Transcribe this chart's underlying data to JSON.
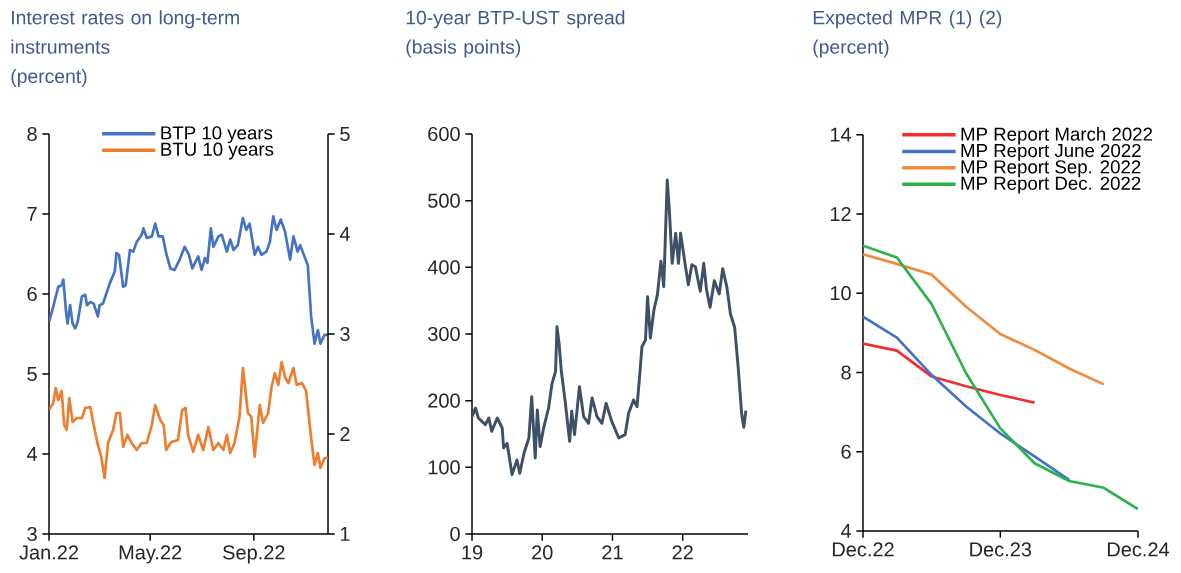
{
  "chart_data": [
    {
      "type": "line",
      "title": "Interest rates on long-term instruments",
      "subtitle": "(percent)",
      "legend": "top",
      "xlim": [
        "2022-01-01",
        "2022-11-28"
      ],
      "xticks": [
        {
          "value": "2022-01-01",
          "label": "Jan.22"
        },
        {
          "value": "2022-05-01",
          "label": "May.22"
        },
        {
          "value": "2022-09-01",
          "label": "Sep.22"
        }
      ],
      "ylim": [
        3,
        8
      ],
      "yticks": [
        3,
        4,
        5,
        6,
        7,
        8
      ],
      "y2lim": [
        1,
        5
      ],
      "y2ticks": [
        1,
        2,
        3,
        4,
        5
      ],
      "series": [
        {
          "name": "BTP 10 years",
          "color": "#4472c4",
          "x": [
            "2022-01-01",
            "2022-01-06",
            "2022-01-12",
            "2022-01-16",
            "2022-01-18",
            "2022-01-21",
            "2022-01-23",
            "2022-01-26",
            "2022-01-29",
            "2022-02-01",
            "2022-02-04",
            "2022-02-09",
            "2022-02-13",
            "2022-02-15",
            "2022-02-19",
            "2022-02-23",
            "2022-02-28",
            "2022-03-02",
            "2022-03-06",
            "2022-03-14",
            "2022-03-20",
            "2022-03-22",
            "2022-03-25",
            "2022-03-30",
            "2022-04-02",
            "2022-04-07",
            "2022-04-11",
            "2022-04-15",
            "2022-04-21",
            "2022-04-23",
            "2022-04-27",
            "2022-05-03",
            "2022-05-07",
            "2022-05-11",
            "2022-05-16",
            "2022-05-20",
            "2022-05-25",
            "2022-05-30",
            "2022-06-05",
            "2022-06-11",
            "2022-06-16",
            "2022-06-20",
            "2022-06-27",
            "2022-07-01",
            "2022-07-05",
            "2022-07-08",
            "2022-07-12",
            "2022-07-15",
            "2022-07-21",
            "2022-07-25",
            "2022-07-31",
            "2022-08-04",
            "2022-08-08",
            "2022-08-13",
            "2022-08-19",
            "2022-08-23",
            "2022-08-27",
            "2022-09-02",
            "2022-09-06",
            "2022-09-10",
            "2022-09-16",
            "2022-09-20",
            "2022-09-24",
            "2022-09-28",
            "2022-10-03",
            "2022-10-08",
            "2022-10-14",
            "2022-10-18",
            "2022-10-23",
            "2022-10-26",
            "2022-10-31",
            "2022-11-04",
            "2022-11-08",
            "2022-11-12",
            "2022-11-16",
            "2022-11-19",
            "2022-11-24",
            "2022-11-28"
          ],
          "values": [
            5.65,
            5.84,
            6.09,
            6.11,
            6.18,
            5.8,
            5.63,
            5.86,
            5.63,
            5.57,
            5.65,
            5.97,
            5.99,
            5.86,
            5.9,
            5.88,
            5.72,
            5.86,
            5.88,
            6.13,
            6.28,
            6.51,
            6.49,
            6.09,
            6.11,
            6.55,
            6.53,
            6.65,
            6.74,
            6.82,
            6.7,
            6.72,
            6.88,
            6.72,
            6.72,
            6.51,
            6.32,
            6.3,
            6.43,
            6.59,
            6.49,
            6.32,
            6.47,
            6.3,
            6.45,
            6.39,
            6.82,
            6.59,
            6.72,
            6.74,
            6.53,
            6.68,
            6.55,
            6.61,
            6.95,
            6.8,
            6.88,
            6.49,
            6.59,
            6.49,
            6.53,
            6.65,
            6.97,
            6.8,
            6.93,
            6.78,
            6.43,
            6.72,
            6.53,
            6.61,
            6.47,
            6.36,
            5.72,
            5.38,
            5.55,
            5.38,
            5.49,
            5.49
          ]
        },
        {
          "name": "BTU 10 years",
          "color": "#ed7d31",
          "axis": "y2",
          "x": [
            "2022-01-01",
            "2022-01-06",
            "2022-01-09",
            "2022-01-12",
            "2022-01-16",
            "2022-01-19",
            "2022-01-22",
            "2022-01-25",
            "2022-01-29",
            "2022-02-03",
            "2022-02-09",
            "2022-02-13",
            "2022-02-19",
            "2022-02-23",
            "2022-02-28",
            "2022-03-04",
            "2022-03-08",
            "2022-03-12",
            "2022-03-18",
            "2022-03-22",
            "2022-03-26",
            "2022-03-30",
            "2022-04-04",
            "2022-04-09",
            "2022-04-15",
            "2022-04-21",
            "2022-04-27",
            "2022-05-03",
            "2022-05-07",
            "2022-05-13",
            "2022-05-17",
            "2022-05-20",
            "2022-05-26",
            "2022-06-03",
            "2022-06-08",
            "2022-06-12",
            "2022-06-15",
            "2022-06-21",
            "2022-06-27",
            "2022-07-03",
            "2022-07-09",
            "2022-07-15",
            "2022-07-21",
            "2022-07-27",
            "2022-07-31",
            "2022-08-04",
            "2022-08-09",
            "2022-08-15",
            "2022-08-19",
            "2022-08-25",
            "2022-08-29",
            "2022-09-02",
            "2022-09-08",
            "2022-09-12",
            "2022-09-18",
            "2022-09-22",
            "2022-09-26",
            "2022-09-30",
            "2022-10-04",
            "2022-10-08",
            "2022-10-12",
            "2022-10-18",
            "2022-10-22",
            "2022-10-28",
            "2022-11-02",
            "2022-11-08",
            "2022-11-12",
            "2022-11-16",
            "2022-11-19",
            "2022-11-24",
            "2022-11-28"
          ],
          "values": [
            2.24,
            2.31,
            2.46,
            2.34,
            2.43,
            2.09,
            2.04,
            2.36,
            2.12,
            2.16,
            2.16,
            2.26,
            2.27,
            2.09,
            1.89,
            1.77,
            1.56,
            1.91,
            2.04,
            2.21,
            2.21,
            1.87,
            1.99,
            1.91,
            1.84,
            1.91,
            1.91,
            2.09,
            2.29,
            2.14,
            2.09,
            1.84,
            1.92,
            1.94,
            2.24,
            2.26,
            1.99,
            1.82,
            1.99,
            1.84,
            2.07,
            1.84,
            1.91,
            1.84,
            1.99,
            1.81,
            1.91,
            2.17,
            2.66,
            2.21,
            2.17,
            1.77,
            2.29,
            2.11,
            2.21,
            2.47,
            2.61,
            2.49,
            2.72,
            2.57,
            2.51,
            2.66,
            2.49,
            2.51,
            2.43,
            1.96,
            1.69,
            1.81,
            1.66,
            1.76,
            1.76
          ]
        }
      ]
    },
    {
      "type": "line",
      "title": "10-year BTP-UST spread",
      "subtitle": "(basis points)",
      "xlim": [
        19,
        22.93
      ],
      "xticks": [
        19,
        20,
        21,
        22
      ],
      "ylim": [
        0,
        600
      ],
      "yticks": [
        0,
        100,
        200,
        300,
        400,
        500,
        600
      ],
      "series": [
        {
          "color": "#3e5066",
          "x": [
            19.0,
            19.05,
            19.09,
            19.19,
            19.24,
            19.28,
            19.36,
            19.43,
            19.45,
            19.5,
            19.57,
            19.64,
            19.68,
            19.74,
            19.81,
            19.85,
            19.9,
            19.93,
            19.97,
            20.02,
            20.09,
            20.14,
            20.19,
            20.21,
            20.24,
            20.27,
            20.33,
            20.39,
            20.42,
            20.46,
            20.53,
            20.59,
            20.66,
            20.71,
            20.78,
            20.85,
            20.91,
            20.99,
            21.09,
            21.18,
            21.23,
            21.3,
            21.35,
            21.39,
            21.42,
            21.47,
            21.5,
            21.54,
            21.59,
            21.64,
            21.69,
            21.73,
            21.78,
            21.81,
            21.85,
            21.9,
            21.94,
            21.97,
            22.04,
            22.08,
            22.13,
            22.18,
            22.25,
            22.3,
            22.34,
            22.39,
            22.45,
            22.52,
            22.57,
            22.63,
            22.68,
            22.74,
            22.79,
            22.84,
            22.87,
            22.9
          ],
          "values": [
            176,
            189,
            174,
            164,
            174,
            154,
            174,
            159,
            129,
            136,
            89,
            111,
            91,
            121,
            144,
            206,
            114,
            186,
            131,
            159,
            189,
            226,
            244,
            311,
            286,
            246,
            196,
            139,
            184,
            149,
            221,
            176,
            166,
            204,
            176,
            166,
            196,
            169,
            144,
            149,
            181,
            201,
            191,
            241,
            281,
            291,
            356,
            294,
            336,
            359,
            409,
            371,
            531,
            486,
            406,
            451,
            406,
            451,
            401,
            374,
            404,
            401,
            364,
            406,
            366,
            340,
            380,
            360,
            398,
            370,
            330,
            310,
            250,
            180,
            160,
            185
          ]
        }
      ]
    },
    {
      "type": "line",
      "title": "Expected MPR (1) (2)",
      "subtitle": "(percent)",
      "legend": "top right",
      "xlim": [
        "2022-12",
        "2024-12"
      ],
      "xticks": [
        {
          "value": "2022-12",
          "label": "Dec.22"
        },
        {
          "value": "2023-12",
          "label": "Dec.23"
        },
        {
          "value": "2024-12",
          "label": "Dec.24"
        }
      ],
      "ylim": [
        4,
        14
      ],
      "yticks": [
        4,
        6,
        8,
        10,
        12,
        14
      ],
      "series": [
        {
          "name": "MP Report March 2022",
          "color": "#ee2f2f",
          "x": [
            "2022-12",
            "2023-03",
            "2023-06",
            "2023-09",
            "2023-12",
            "2024-03"
          ],
          "values": [
            8.73,
            8.55,
            7.9,
            7.65,
            7.43,
            7.24
          ]
        },
        {
          "name": "MP Report June 2022",
          "color": "#4472c4",
          "x": [
            "2022-12",
            "2023-03",
            "2023-06",
            "2023-09",
            "2023-12",
            "2024-03",
            "2024-06"
          ],
          "values": [
            9.41,
            8.88,
            7.94,
            7.14,
            6.46,
            5.88,
            5.29
          ]
        },
        {
          "name": "MP Report Sep. 2022",
          "color": "#f08a3c",
          "x": [
            "2022-12",
            "2023-03",
            "2023-06",
            "2023-09",
            "2023-12",
            "2024-03",
            "2024-06",
            "2024-09"
          ],
          "values": [
            10.98,
            10.74,
            10.47,
            9.66,
            8.97,
            8.57,
            8.1,
            7.7
          ]
        },
        {
          "name": "MP Report Dec. 2022",
          "color": "#2bb24c",
          "x": [
            "2022-12",
            "2023-03",
            "2023-06",
            "2023-09",
            "2023-12",
            "2024-03",
            "2024-06",
            "2024-09",
            "2024-12"
          ],
          "values": [
            11.2,
            10.9,
            9.73,
            7.98,
            6.59,
            5.71,
            5.26,
            5.09,
            4.55
          ]
        }
      ]
    }
  ]
}
